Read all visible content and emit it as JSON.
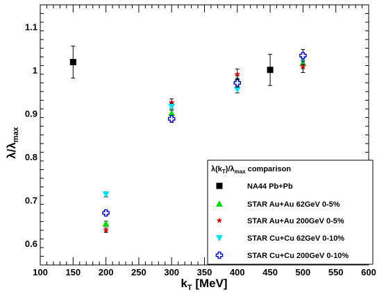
{
  "chart_data": {
    "type": "scatter",
    "title": "",
    "xlabel": {
      "main": "k",
      "sub": "T",
      "unit": " [MeV]"
    },
    "ylabel": {
      "main": "λ/λ",
      "sub": "max"
    },
    "xlim": [
      100,
      600
    ],
    "ylim": [
      0.55,
      1.15
    ],
    "x_ticks": [
      100,
      150,
      200,
      250,
      300,
      350,
      400,
      450,
      500,
      550,
      600
    ],
    "y_ticks": [
      0.6,
      0.7,
      0.8,
      0.9,
      1.0,
      1.1
    ],
    "y_tick_labels": [
      "0.6",
      "0.7",
      "0.8",
      "0.9",
      "1",
      "1.1"
    ],
    "grid": false,
    "legend": {
      "placement": "bottom-right",
      "header": {
        "pre": "λ(k",
        "sub1": "T",
        "mid": ")/λ",
        "sub2": "max",
        "post": " comparison"
      }
    },
    "series": [
      {
        "name": "NA44 Pb+Pb",
        "marker": "square",
        "color": "#000000",
        "points": [
          {
            "x": 150,
            "y": 1.018,
            "err": 0.037
          },
          {
            "x": 450,
            "y": 1.0,
            "err": 0.036
          }
        ]
      },
      {
        "name": "STAR Au+Au 62GeV 0-5%",
        "marker": "triangle-up",
        "color": "#00dd00",
        "points": [
          {
            "x": 200,
            "y": 0.645,
            "err": 0.006
          },
          {
            "x": 300,
            "y": 0.9,
            "err": 0.01
          },
          {
            "x": 400,
            "y": 0.977,
            "err": 0.01
          },
          {
            "x": 500,
            "y": 1.015,
            "err": 0.012
          }
        ]
      },
      {
        "name": "STAR Au+Au 200GeV 0-5%",
        "marker": "star",
        "color": "#dd0000",
        "points": [
          {
            "x": 200,
            "y": 0.63,
            "err": 0.005
          },
          {
            "x": 300,
            "y": 0.925,
            "err": 0.008
          },
          {
            "x": 400,
            "y": 0.99,
            "err": 0.012
          },
          {
            "x": 500,
            "y": 1.008,
            "err": 0.014
          }
        ]
      },
      {
        "name": "STAR Cu+Cu 62GeV 0-10%",
        "marker": "triangle-down",
        "color": "#00e5ff",
        "points": [
          {
            "x": 200,
            "y": 0.713,
            "err": 0.006
          },
          {
            "x": 300,
            "y": 0.915,
            "err": 0.008
          },
          {
            "x": 400,
            "y": 0.955,
            "err": 0.008
          },
          {
            "x": 500,
            "y": 1.025,
            "err": 0.012
          }
        ]
      },
      {
        "name": "STAR Cu+Cu 200GeV 0-10%",
        "marker": "open-cross",
        "color": "#0000cc",
        "points": [
          {
            "x": 200,
            "y": 0.67,
            "err": 0.006
          },
          {
            "x": 300,
            "y": 0.887,
            "err": 0.008
          },
          {
            "x": 400,
            "y": 0.97,
            "err": 0.01
          },
          {
            "x": 500,
            "y": 1.033,
            "err": 0.014
          }
        ]
      }
    ]
  }
}
